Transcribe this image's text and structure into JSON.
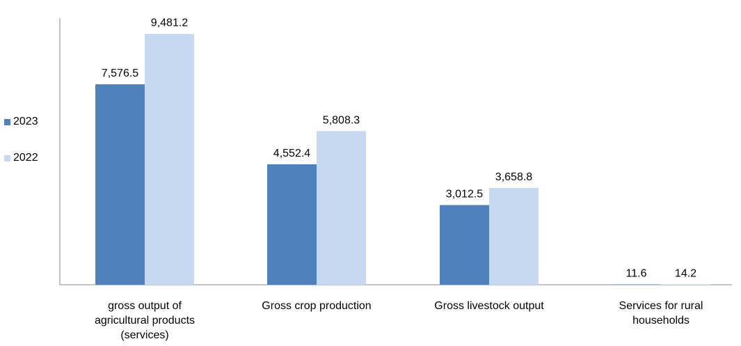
{
  "chart_data": {
    "type": "bar",
    "categories": [
      [
        "gross output of",
        "agricultural products",
        "(services)"
      ],
      [
        "Gross crop production"
      ],
      [
        "Gross livestock output"
      ],
      [
        "Services for rural",
        "households"
      ]
    ],
    "series": [
      {
        "name": "2023",
        "color": "#4f81bd",
        "values": [
          7576.5,
          4552.4,
          3012.5,
          11.6
        ],
        "labels": [
          "7,576.5",
          "4,552.4",
          "3,012.5",
          "11.6"
        ]
      },
      {
        "name": "2022",
        "color": "#c6d9f1",
        "values": [
          9481.2,
          5808.3,
          3658.8,
          14.2
        ],
        "labels": [
          "9,481.2",
          "5,808.3",
          "3,658.8",
          "14.2"
        ]
      }
    ],
    "ylim": [
      0,
      10000
    ],
    "legend_position": "left",
    "grid": false
  }
}
